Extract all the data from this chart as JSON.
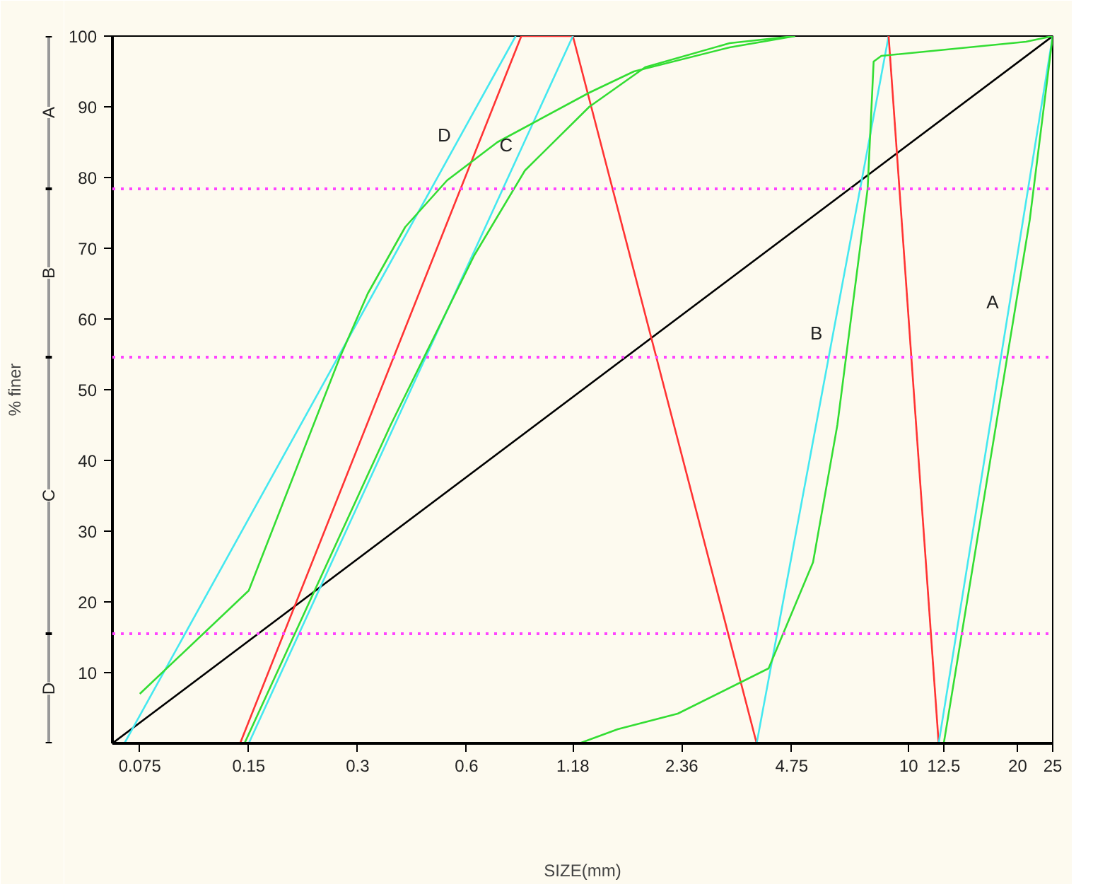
{
  "chart_data": {
    "type": "line",
    "xlabel": "SIZE(mm)",
    "ylabel": "% finer",
    "log": "x",
    "xlim": [
      0.063,
      25
    ],
    "ylim": [
      0,
      100
    ],
    "xticks": [
      0.075,
      0.15,
      0.3,
      0.6,
      1.18,
      2.36,
      4.75,
      10,
      12.5,
      20,
      25
    ],
    "yticks": [
      10,
      20,
      30,
      40,
      50,
      60,
      70,
      80,
      90,
      100
    ],
    "series": [
      {
        "color": "#000000",
        "x": [
          0.063,
          25
        ],
        "values": [
          0,
          100
        ]
      },
      {
        "color": "#44e8f0",
        "x": [
          0.068,
          0.82
        ],
        "values": [
          0,
          100
        ]
      },
      {
        "color": "#ff3333",
        "x": [
          0.142,
          0.85,
          1.18,
          3.8
        ],
        "values": [
          0,
          100,
          100,
          0
        ]
      },
      {
        "color": "#44e8f0",
        "x": [
          0.15,
          1.18
        ],
        "values": [
          0,
          100
        ]
      },
      {
        "color": "#44e8f0",
        "x": [
          3.8,
          8.8
        ],
        "values": [
          0,
          100
        ]
      },
      {
        "color": "#ff3333",
        "x": [
          8.8,
          12.1
        ],
        "values": [
          100,
          0
        ]
      },
      {
        "color": "#44e8f0",
        "x": [
          12.1,
          25
        ],
        "values": [
          0,
          100
        ]
      },
      {
        "color": "#33dd33",
        "x": [
          0.075,
          0.15,
          0.267,
          0.32,
          0.406,
          0.53,
          0.73,
          1.31,
          1.74,
          3.2,
          4.85
        ],
        "values": [
          7,
          21.6,
          54.4,
          63.6,
          73,
          79.6,
          85,
          92,
          95,
          98.4,
          100
        ]
      },
      {
        "color": "#33dd33",
        "x": [
          0.146,
          0.37,
          0.63,
          0.87,
          1.31,
          1.87,
          3.2,
          4.85
        ],
        "values": [
          0,
          45,
          69,
          81,
          90,
          95.6,
          99,
          100
        ]
      },
      {
        "color": "#33dd33",
        "x": [
          1.23,
          1.57,
          2.3,
          4.1,
          5.44,
          6.35,
          7.7,
          8.0,
          8.4,
          21.1,
          25
        ],
        "values": [
          0,
          2,
          4.2,
          10.6,
          25.6,
          45,
          78.4,
          96.4,
          97.2,
          99.2,
          100
        ]
      },
      {
        "color": "#33dd33",
        "x": [
          12.5,
          21.6,
          25
        ],
        "values": [
          0,
          74,
          100
        ]
      }
    ],
    "ref_lines": [
      {
        "axis": "y",
        "value": 78.4,
        "color": "#ff44ff",
        "line_style": "dotted"
      },
      {
        "axis": "y",
        "value": 54.6,
        "color": "#ff44ff",
        "line_style": "dotted"
      },
      {
        "axis": "y",
        "value": 15.5,
        "color": "#ff44ff",
        "line_style": "dotted"
      }
    ],
    "annotations": [
      "A",
      "B",
      "C",
      "D",
      {
        "text": "D",
        "x": 0.58,
        "y": 86
      },
      {
        "text": "C",
        "x": 0.86,
        "y": 84.6
      },
      {
        "text": "B",
        "x": 6.19,
        "y": 58
      },
      {
        "text": "A",
        "x": 19.0,
        "y": 62.4
      }
    ]
  }
}
